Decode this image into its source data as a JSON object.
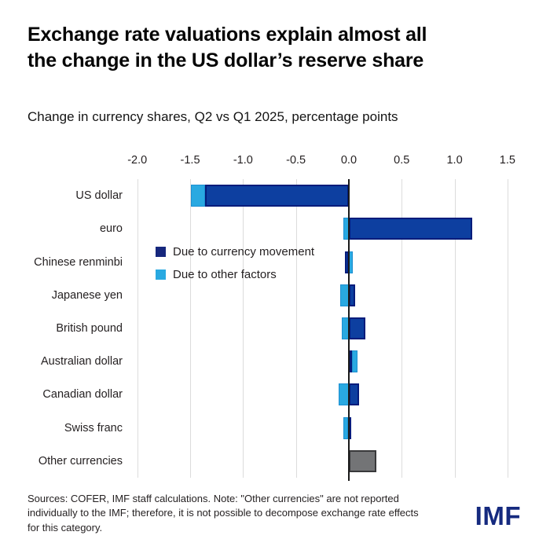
{
  "header": {
    "title_line1": "Exchange rate valuations explain almost all",
    "title_line2": "the change in the US dollar’s reserve share",
    "subtitle": "Change in currency shares, Q2 vs Q1 2025, percentage points"
  },
  "chart_data": {
    "type": "bar",
    "orientation": "horizontal",
    "stacked": true,
    "title": "Change in currency shares, Q2 vs Q1 2025, percentage points",
    "categories": [
      "US dollar",
      "euro",
      "Chinese renminbi",
      "Japanese yen",
      "British pound",
      "Australian dollar",
      "Canadian dollar",
      "Swiss franc",
      "Other currencies"
    ],
    "series": [
      {
        "name": "Due to currency movement",
        "fill": "#0d3fa0",
        "border": "#041c7b",
        "class": "seg-dark",
        "values": [
          -1.36,
          1.17,
          -0.04,
          0.06,
          0.16,
          0.03,
          0.1,
          -0.01,
          null
        ]
      },
      {
        "name": "Due to other factors",
        "fill": "#29a9e1",
        "border": "#1d8fd1",
        "class": "seg-light",
        "values": [
          -0.13,
          -0.05,
          0.04,
          -0.08,
          -0.07,
          0.05,
          -0.1,
          -0.04,
          null
        ]
      },
      {
        "name": "Other currencies (not decomposable)",
        "fill": "#737476",
        "border": "#39393b",
        "class": "seg-gray",
        "values": [
          null,
          null,
          null,
          null,
          null,
          null,
          null,
          null,
          0.26
        ]
      }
    ],
    "xlim": [
      -2.05,
      1.85
    ],
    "xticks": [
      -2.0,
      -1.5,
      -1.0,
      -0.5,
      0.0,
      0.5,
      1.0,
      1.5
    ],
    "xtick_labels": [
      "-2.0",
      "-1.5",
      "-1.0",
      "-0.5",
      "0.0",
      "0.5",
      "1.0",
      "1.5"
    ],
    "grid": true,
    "legend_position": "inside-upper-left",
    "legend": [
      {
        "label": "Due to currency movement",
        "color": "#16277d"
      },
      {
        "label": "Due to other factors",
        "color": "#29a9e1"
      }
    ]
  },
  "footer": {
    "note": "Sources: COFER, IMF staff calculations. Note: \"Other currencies\" are not reported individually to the IMF; therefore, it is not possible to decompose exchange rate effects for this category.",
    "logo": "IMF"
  }
}
